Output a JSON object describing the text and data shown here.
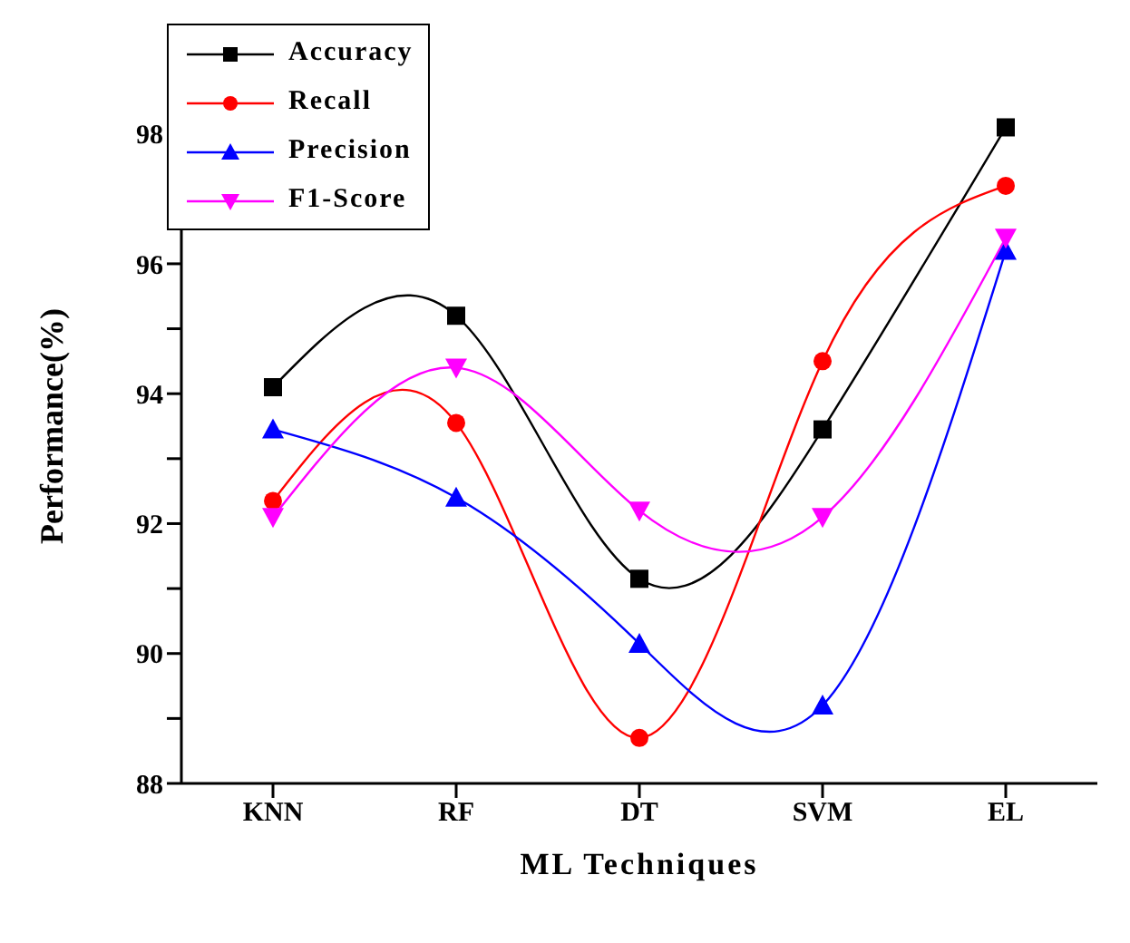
{
  "chart_data": {
    "type": "line",
    "xlabel": "ML Techniques",
    "ylabel": "Performance(%)",
    "categories": [
      "KNN",
      "RF",
      "DT",
      "SVM",
      "EL"
    ],
    "series": [
      {
        "name": "Accuracy",
        "color": "#000000",
        "marker": "square",
        "values": [
          94.1,
          95.2,
          91.15,
          93.45,
          98.1
        ]
      },
      {
        "name": "Recall",
        "color": "#ff0000",
        "marker": "circle",
        "values": [
          92.35,
          93.55,
          88.7,
          94.5,
          97.2
        ]
      },
      {
        "name": "Precision",
        "color": "#0000ff",
        "marker": "triangle",
        "values": [
          93.45,
          92.4,
          90.15,
          89.2,
          96.2
        ]
      },
      {
        "name": "F1-Score",
        "color": "#ff00ff",
        "marker": "triangle-down",
        "values": [
          92.1,
          94.4,
          92.2,
          92.1,
          96.4
        ]
      }
    ],
    "ylim": [
      88,
      99
    ],
    "yticks": [
      88,
      {
        "value": 89,
        "label": null
      },
      90,
      {
        "value": 91,
        "label": null
      },
      92,
      {
        "value": 93,
        "label": null
      },
      94,
      {
        "value": 95,
        "label": null
      },
      96,
      {
        "value": 97,
        "label": null
      },
      98
    ],
    "grid": false,
    "legend": "top left",
    "line_style": "solid"
  }
}
